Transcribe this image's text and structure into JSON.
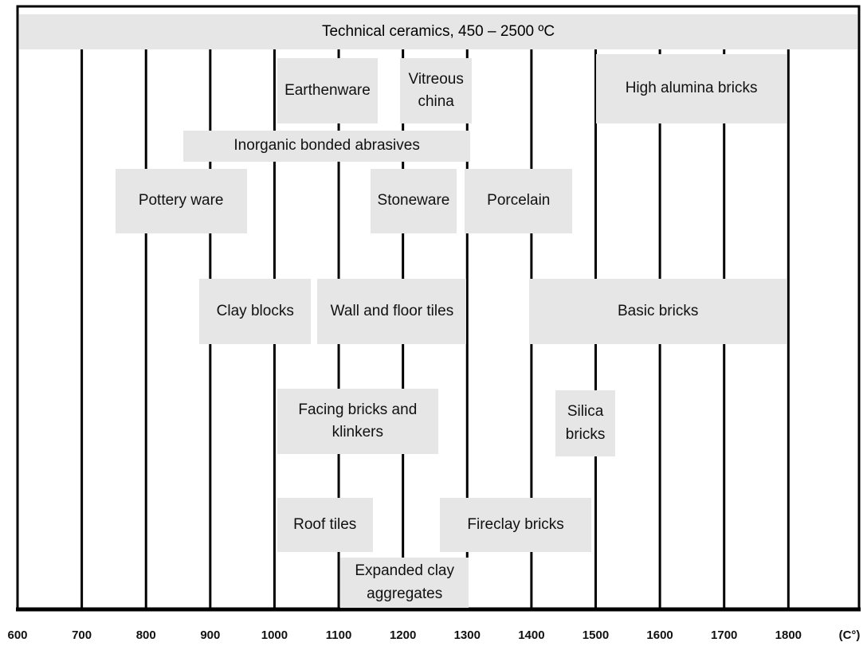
{
  "chart_data": {
    "type": "range",
    "title": "Technical ceramics, 450 – 2500 ºC",
    "x_unit": "(C°)",
    "xlim": [
      600,
      1910
    ],
    "xticks": [
      600,
      700,
      800,
      900,
      1000,
      1100,
      1200,
      1300,
      1400,
      1500,
      1600,
      1700,
      1800
    ],
    "color": "#e6e6e6",
    "ranges": [
      {
        "label": "Earthenware",
        "start": 1004,
        "end": 1161
      },
      {
        "label": "Vitreous china",
        "start": 1196,
        "end": 1307
      },
      {
        "label": "High alumina bricks",
        "start": 1501,
        "end": 1797
      },
      {
        "label": "Inorganic bonded abrasives",
        "start": 858,
        "end": 1305
      },
      {
        "label": "Pottery ware",
        "start": 752,
        "end": 957
      },
      {
        "label": "Stoneware",
        "start": 1150,
        "end": 1283
      },
      {
        "label": "Porcelain",
        "start": 1296,
        "end": 1464
      },
      {
        "label": "Clay blocks",
        "start": 883,
        "end": 1057
      },
      {
        "label": "Wall and floor tiles",
        "start": 1067,
        "end": 1299
      },
      {
        "label": "Basic bricks",
        "start": 1397,
        "end": 1797
      },
      {
        "label": "Facing bricks and klinkers",
        "start": 1004,
        "end": 1255
      },
      {
        "label": "Silica bricks",
        "start": 1437,
        "end": 1531
      },
      {
        "label": "Roof tiles",
        "start": 1004,
        "end": 1153
      },
      {
        "label": "Fireclay bricks",
        "start": 1258,
        "end": 1493
      },
      {
        "label": "Expanded clay aggregates",
        "start": 1103,
        "end": 1302
      }
    ]
  }
}
